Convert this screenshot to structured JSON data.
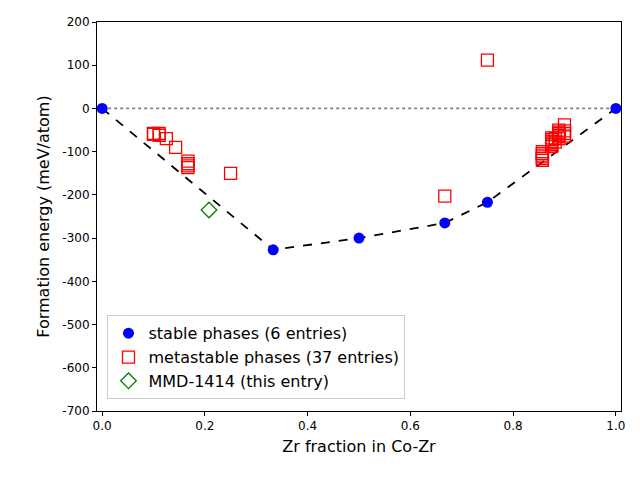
{
  "chart_data": {
    "type": "scatter",
    "x_label": "Zr fraction in Co-Zr",
    "y_label": "Formation energy (meV/atom)",
    "xlim": [
      -0.01,
      1.01
    ],
    "xticks": [
      {
        "value": 0,
        "label": "0.0"
      },
      {
        "value": 0.2,
        "label": "0.2"
      },
      {
        "value": 0.4,
        "label": "0.4"
      },
      {
        "value": 0.6,
        "label": "0.6"
      },
      {
        "value": 0.8,
        "label": "0.8"
      },
      {
        "value": 1,
        "label": "1.0"
      }
    ],
    "ylim": [
      -700,
      200
    ],
    "yticks": [
      -700,
      -600,
      -500,
      -400,
      -300,
      -200,
      -100,
      0,
      100,
      200
    ],
    "grid": false,
    "legend": "lower left",
    "series": [
      {
        "type": "line",
        "color": "#808080",
        "line_style": "dotted",
        "marker": "none",
        "x": [
          0,
          1
        ],
        "values": [
          0,
          0
        ]
      },
      {
        "type": "line",
        "color": "#000000",
        "line_style": "dashed",
        "marker": "none",
        "x": [
          0,
          0.333,
          0.5,
          0.667,
          0.75,
          1
        ],
        "values": [
          0,
          -327,
          -300,
          -265,
          -217,
          0
        ]
      },
      {
        "name": "stable phases (6 entries)",
        "type": "scatter",
        "color": "#0000ff",
        "marker": "circle",
        "line_style": "none",
        "x": [
          0,
          0.333,
          0.5,
          0.667,
          0.75,
          1
        ],
        "values": [
          0,
          -327,
          -300,
          -265,
          -217,
          0
        ]
      },
      {
        "name": "metastable phases (37 entries)",
        "type": "scatter",
        "color": "#ff0000",
        "marker": "square-open",
        "line_style": "none",
        "x": [
          0.1,
          0.1,
          0.111,
          0.111,
          0.125,
          0.143,
          0.167,
          0.167,
          0.167,
          0.167,
          0.25,
          0.667,
          0.75,
          0.857,
          0.857,
          0.857,
          0.857,
          0.857,
          0.875,
          0.875,
          0.875,
          0.875,
          0.875,
          0.875,
          0.889,
          0.889,
          0.889,
          0.889,
          0.889,
          0.889,
          0.9,
          0.9,
          0.9,
          0.9,
          0.882,
          0.882,
          0.857
        ],
        "values": [
          -58,
          -60,
          -58,
          -62,
          -70,
          -90,
          -122,
          -128,
          -133,
          -137,
          -150,
          -203,
          112,
          -104,
          -108,
          -112,
          -116,
          -120,
          -68,
          -72,
          -76,
          -80,
          -84,
          -88,
          -50,
          -55,
          -58,
          -62,
          -66,
          -70,
          -38,
          -52,
          -58,
          -64,
          -70,
          -78,
          -100
        ]
      },
      {
        "name": "MMD-1414 (this entry)",
        "type": "scatter",
        "color": "#008000",
        "marker": "diamond-open",
        "line_style": "none",
        "x": [
          0.208
        ],
        "values": [
          -235
        ]
      }
    ]
  }
}
